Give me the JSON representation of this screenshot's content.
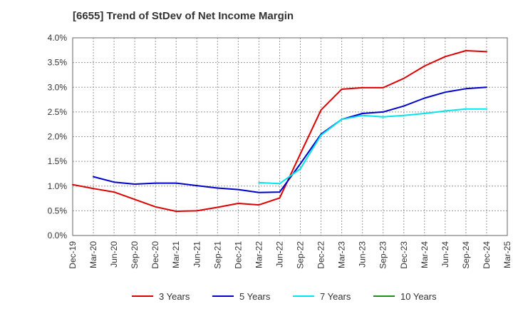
{
  "title": "[6655]  Trend of StDev of Net Income Margin",
  "chart_data": {
    "type": "line",
    "title": "[6655]  Trend of StDev of Net Income Margin",
    "xlabel": "",
    "ylabel": "",
    "ylim": [
      0,
      4.0
    ],
    "y_ticks": [
      "0.0%",
      "0.5%",
      "1.0%",
      "1.5%",
      "2.0%",
      "2.5%",
      "3.0%",
      "3.5%",
      "4.0%"
    ],
    "x_ticks": [
      "Dec-19",
      "Mar-20",
      "Jun-20",
      "Sep-20",
      "Dec-20",
      "Mar-21",
      "Jun-21",
      "Sep-21",
      "Dec-21",
      "Mar-22",
      "Jun-22",
      "Sep-22",
      "Dec-22",
      "Mar-23",
      "Jun-23",
      "Sep-23",
      "Dec-23",
      "Mar-24",
      "Jun-24",
      "Sep-24",
      "Dec-24",
      "Mar-25"
    ],
    "grid": true,
    "legend_position": "bottom",
    "series": [
      {
        "name": "3 Years",
        "color": "#dd0000",
        "values": [
          1.03,
          0.95,
          0.88,
          0.73,
          0.58,
          0.49,
          0.5,
          0.57,
          0.65,
          0.62,
          0.76,
          1.65,
          2.54,
          2.96,
          2.99,
          2.99,
          3.18,
          3.43,
          3.62,
          3.74,
          3.72,
          null
        ]
      },
      {
        "name": "5 Years",
        "color": "#0000cc",
        "values": [
          null,
          1.19,
          1.08,
          1.04,
          1.06,
          1.06,
          1.01,
          0.96,
          0.93,
          0.87,
          0.88,
          1.45,
          2.05,
          2.35,
          2.47,
          2.5,
          2.62,
          2.78,
          2.9,
          2.97,
          3.0,
          null
        ]
      },
      {
        "name": "7 Years",
        "color": "#00e5ee",
        "values": [
          null,
          null,
          null,
          null,
          null,
          null,
          null,
          null,
          null,
          1.07,
          1.05,
          1.35,
          2.03,
          2.35,
          2.43,
          2.4,
          2.43,
          2.47,
          2.52,
          2.56,
          2.56,
          null
        ]
      },
      {
        "name": "10 Years",
        "color": "#228b22",
        "values": [
          null,
          null,
          null,
          null,
          null,
          null,
          null,
          null,
          null,
          null,
          null,
          null,
          null,
          null,
          null,
          null,
          null,
          null,
          null,
          null,
          null,
          null
        ]
      }
    ]
  }
}
